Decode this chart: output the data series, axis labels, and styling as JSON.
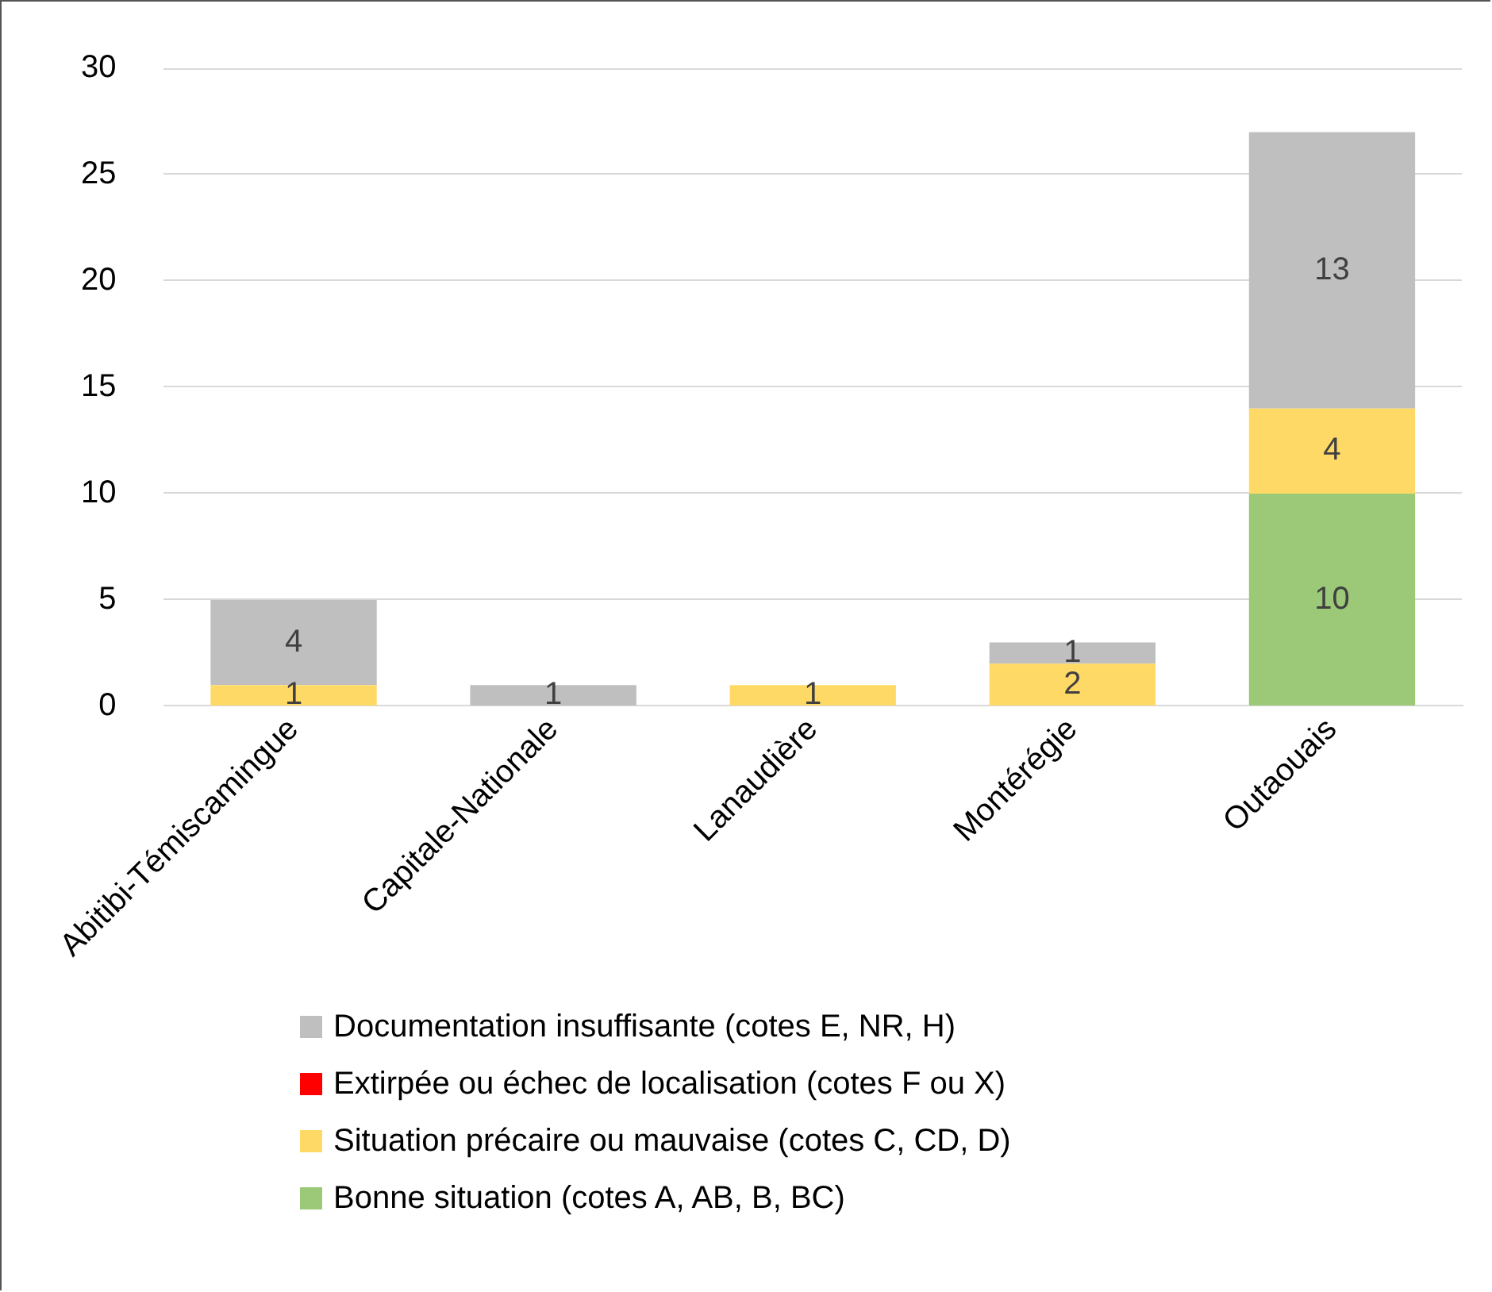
{
  "chart_data": {
    "type": "bar",
    "stacked": true,
    "categories": [
      "Abitibi-Témiscamingue",
      "Capitale-Nationale",
      "Lanaudière",
      "Montérégie",
      "Outaouais"
    ],
    "series": [
      {
        "name": "Bonne situation (cotes A, AB, B, BC)",
        "color": "#9bc978",
        "values": [
          null,
          null,
          null,
          null,
          10
        ]
      },
      {
        "name": "Situation précaire ou mauvaise (cotes C, CD, D)",
        "color": "#ffd966",
        "values": [
          1,
          null,
          1,
          2,
          4
        ]
      },
      {
        "name": "Extirpée ou échec de localisation (cotes F ou X)",
        "color": "#ff0000",
        "values": [
          null,
          null,
          null,
          null,
          null
        ]
      },
      {
        "name": "Documentation insuffisante (cotes E, NR, H)",
        "color": "#bfbfbf",
        "values": [
          4,
          1,
          null,
          1,
          13
        ]
      }
    ],
    "ylim": [
      0,
      30
    ],
    "yticks": [
      0,
      5,
      10,
      15,
      20,
      25,
      30
    ],
    "grid": "y",
    "legend": "bottom",
    "data_labels": true
  }
}
